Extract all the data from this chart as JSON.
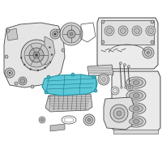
{
  "background_color": "#ffffff",
  "highlight_color": "#5bc8d8",
  "line_color": "#666666",
  "dark_line": "#444444",
  "gray_fill": "#d0d0d0",
  "light_fill": "#e8e8e8",
  "mid_fill": "#bbbbbb",
  "border_color": "#dddddd"
}
